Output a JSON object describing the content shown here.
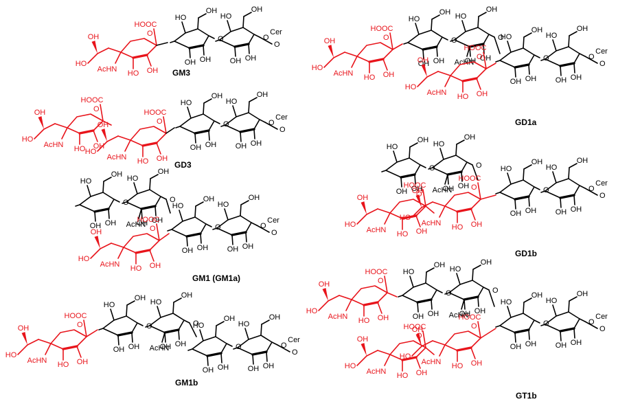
{
  "compounds": [
    {
      "id": "gm3",
      "name": "GM3"
    },
    {
      "id": "gd3",
      "name": "GD3"
    },
    {
      "id": "gm1",
      "name": "GM1 (GM1a)"
    },
    {
      "id": "gm1b",
      "name": "GM1b"
    },
    {
      "id": "gd1a",
      "name": "GD1a"
    },
    {
      "id": "gd1b",
      "name": "GD1b"
    },
    {
      "id": "gt1b",
      "name": "GT1b"
    }
  ],
  "atom_labels": {
    "ceramide": "Cer",
    "hydroxyl": "OH",
    "hydroxyl_left": "HO",
    "acetamido": "AcHN",
    "acetamido_right": "AcNH",
    "carboxyl": "HOOC",
    "ring_oxygen": "O"
  },
  "colors": {
    "sialic_acid": "#e8141b",
    "neutral_sugar": "#000000"
  }
}
